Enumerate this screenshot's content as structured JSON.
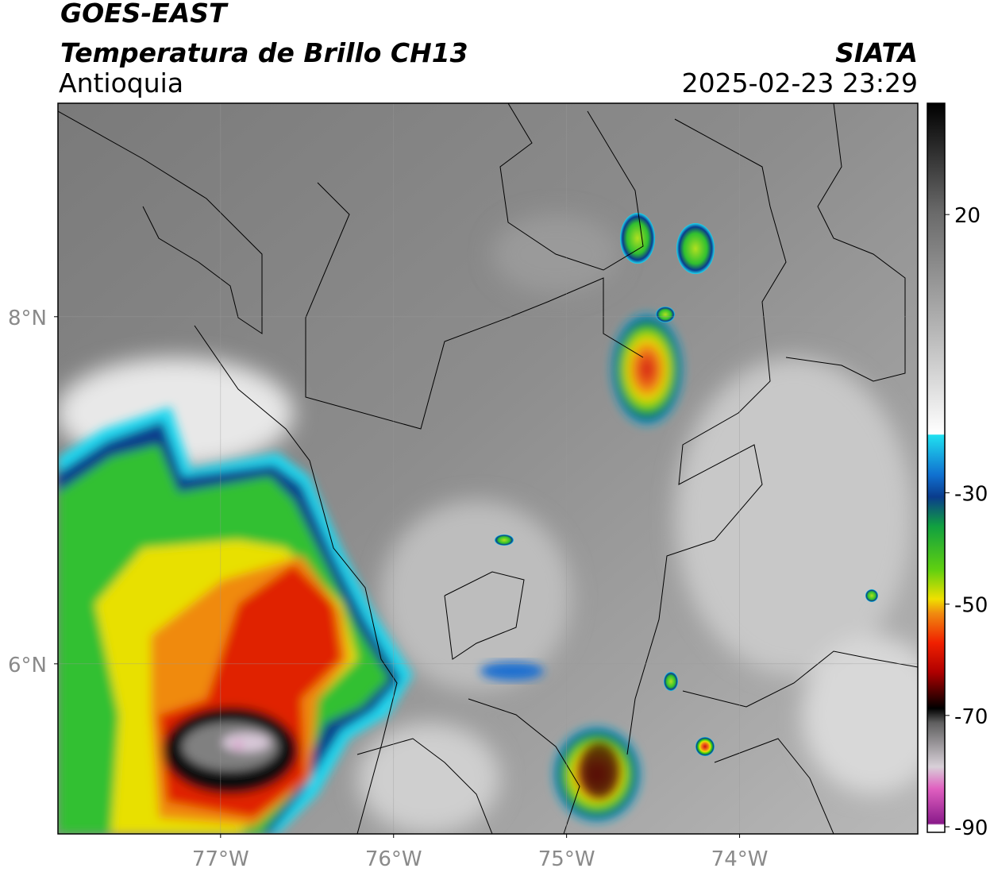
{
  "header": {
    "title": "GOES-EAST",
    "subtitle": "Temperatura de Brillo CH13",
    "region": "Antioquia",
    "source": "SIATA",
    "datetime": "2025-02-23 23:29"
  },
  "map": {
    "xlim": [
      -77.94,
      -72.97
    ],
    "ylim": [
      5.02,
      9.23
    ],
    "xticks": [
      {
        "value": -77,
        "label": "77°W"
      },
      {
        "value": -76,
        "label": "76°W"
      },
      {
        "value": -75,
        "label": "75°W"
      },
      {
        "value": -74,
        "label": "74°W"
      }
    ],
    "yticks": [
      {
        "value": 6,
        "label": "6°N"
      },
      {
        "value": 8,
        "label": "8°N"
      }
    ]
  },
  "colorbar": {
    "lim": [
      -91,
      40
    ],
    "ticks": [
      20,
      -30,
      -50,
      -70,
      -90
    ]
  }
}
